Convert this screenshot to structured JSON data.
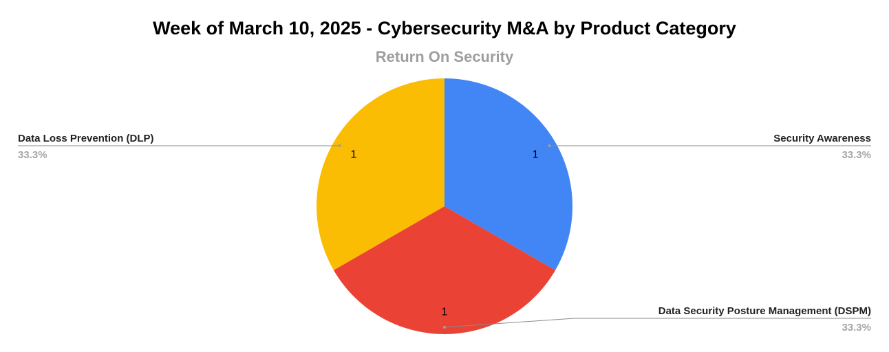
{
  "chart_data": {
    "type": "pie",
    "title": "Week of March 10, 2025 - Cybersecurity M&A by Product Category",
    "subtitle": "Return On Security",
    "slices": [
      {
        "label": "Security Awareness",
        "value": 1,
        "percent": "33.3%",
        "color": "#4285f4"
      },
      {
        "label": "Data Security Posture Management (DSPM)",
        "value": 1,
        "percent": "33.3%",
        "color": "#ea4335"
      },
      {
        "label": "Data Loss Prevention (DLP)",
        "value": 1,
        "percent": "33.3%",
        "color": "#fbbc04"
      }
    ],
    "start_angle": "12 o'clock, clockwise",
    "legend": "labeled leader lines"
  }
}
